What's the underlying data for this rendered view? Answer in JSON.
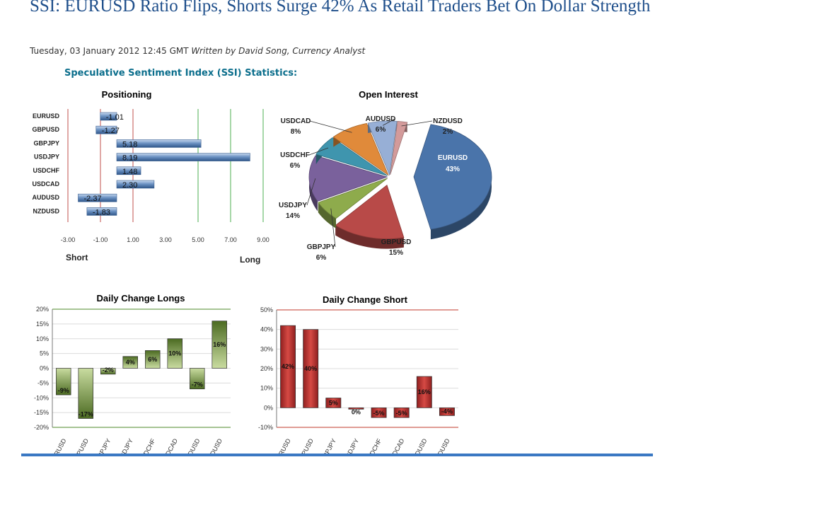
{
  "article": {
    "headline": "SSI: EURUSD Ratio Flips, Shorts Surge 42% As Retail Traders Bet On Dollar Strength",
    "date": "Tuesday, 03 January 2012 12:45 GMT",
    "byline": "Written by David Song, Currency Analyst"
  },
  "section_title": "Speculative Sentiment Index (SSI) Statistics:",
  "colors": {
    "headline": "#1f4f8b",
    "ssi_title": "#0b6e8c",
    "bar_blue": "#4f7cb3",
    "bar_green": "#6b8c34",
    "bar_red": "#c0392b",
    "rule": "#3a78c3"
  },
  "chart_data": [
    {
      "type": "bar",
      "orientation": "horizontal",
      "title": "Positioning",
      "categories": [
        "EURUSD",
        "GBPUSD",
        "GBPJPY",
        "USDJPY",
        "USDCHF",
        "USDCAD",
        "AUDUSD",
        "NZDUSD"
      ],
      "values": [
        -1.01,
        -1.27,
        5.18,
        8.19,
        1.48,
        2.3,
        -2.37,
        -1.83
      ],
      "value_labels": [
        "-1.01",
        "-1.27",
        "5.18",
        "8.19",
        "1.48",
        "2.30",
        "-2.37",
        "-1.83"
      ],
      "xlim": [
        -3,
        9
      ],
      "xticks": [
        "-3.00",
        "-1.00",
        "1.00",
        "3.00",
        "5.00",
        "7.00",
        "9.00"
      ],
      "xlabel_left": "Short",
      "xlabel_right": "Long",
      "reference_lines": [
        {
          "x": -1,
          "color": "#c0504d"
        },
        {
          "x": 1,
          "color": "#c0504d"
        },
        {
          "x": 5,
          "color": "#4caf50"
        },
        {
          "x": 7,
          "color": "#4caf50"
        },
        {
          "x": 9,
          "color": "#4caf50"
        },
        {
          "x": -3,
          "color": "#c0504d"
        }
      ]
    },
    {
      "type": "pie",
      "title": "Open Interest",
      "slices": [
        {
          "label": "EURUSD",
          "value": 43,
          "pct": "43%",
          "color": "#4a74aa"
        },
        {
          "label": "GBPUSD",
          "value": 15,
          "pct": "15%",
          "color": "#b84a48"
        },
        {
          "label": "GBPJPY",
          "value": 6,
          "pct": "6%",
          "color": "#8eab4c"
        },
        {
          "label": "USDJPY",
          "value": 14,
          "pct": "14%",
          "color": "#7a619c"
        },
        {
          "label": "USDCHF",
          "value": 6,
          "pct": "6%",
          "color": "#3f95ae"
        },
        {
          "label": "USDCAD",
          "value": 8,
          "pct": "8%",
          "color": "#e08a3a"
        },
        {
          "label": "AUDUSD",
          "value": 6,
          "pct": "6%",
          "color": "#97afd6"
        },
        {
          "label": "NZDUSD",
          "value": 2,
          "pct": "2%",
          "color": "#d39a9a"
        }
      ]
    },
    {
      "type": "bar",
      "title": "Daily Change Longs",
      "categories": [
        "EURUSD",
        "GBPUSD",
        "GBPJPY",
        "USDJPY",
        "USDCHF",
        "USDCAD",
        "AUDUSD",
        "NZDUSD"
      ],
      "values": [
        -9,
        -17,
        -2,
        4,
        6,
        10,
        -7,
        16
      ],
      "value_labels": [
        "-9%",
        "-17%",
        "-2%",
        "4%",
        "6%",
        "10%",
        "-7%",
        "16%"
      ],
      "ylim": [
        -20,
        20
      ],
      "yticks": [
        "20%",
        "15%",
        "10%",
        "5%",
        "0%",
        "-5%",
        "-10%",
        "-15%",
        "-20%"
      ]
    },
    {
      "type": "bar",
      "title": "Daily Change Short",
      "categories": [
        "EURUSD",
        "GBPUSD",
        "GBPJPY",
        "USDJPY",
        "USDCHF",
        "USDCAD",
        "AUDUSD",
        "NZDUSD"
      ],
      "values": [
        42,
        40,
        5,
        0,
        -5,
        -5,
        16,
        -4
      ],
      "value_labels": [
        "42%",
        "40%",
        "5%",
        "0%",
        "-5%",
        "-5%",
        "16%",
        "-4%"
      ],
      "ylim": [
        -10,
        50
      ],
      "yticks": [
        "50%",
        "40%",
        "30%",
        "20%",
        "10%",
        "0%",
        "-10%"
      ]
    }
  ]
}
